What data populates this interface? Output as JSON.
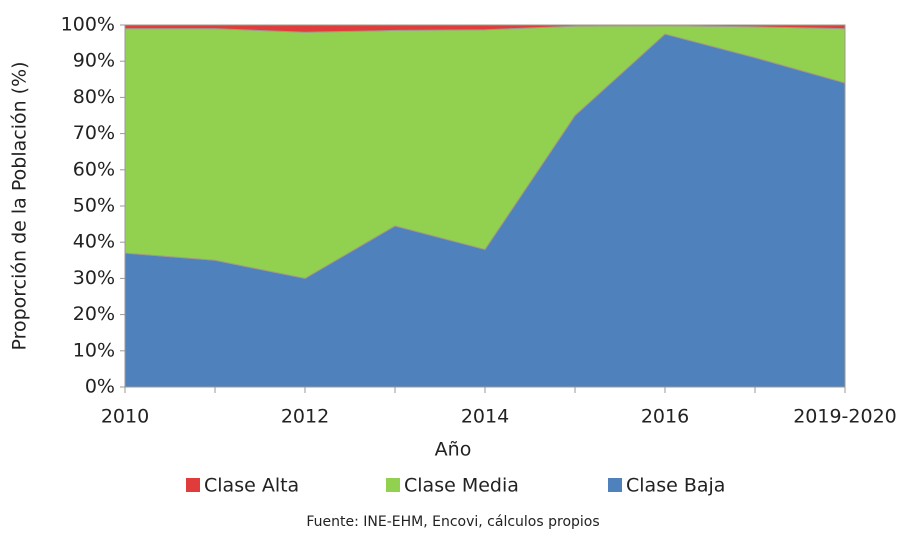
{
  "chart_data": {
    "type": "stacked_area",
    "categories": [
      "2010",
      null,
      "2012",
      null,
      "2014",
      null,
      "2016",
      null,
      "2019-2020"
    ],
    "series": [
      {
        "name": "Clase Alta",
        "color": "#e03c3c",
        "values": [
          1,
          1,
          2,
          1.5,
          1.3,
          0.3,
          0.2,
          0.5,
          1
        ]
      },
      {
        "name": "Clase Media",
        "color": "#92d050",
        "values": [
          62,
          64,
          68,
          54,
          60.7,
          24.7,
          2.3,
          8.5,
          15
        ]
      },
      {
        "name": "Clase Baja",
        "color": "#4f81bd",
        "values": [
          37,
          35,
          30,
          44.5,
          38,
          75,
          97.5,
          91,
          84
        ]
      }
    ],
    "ylim": [
      0,
      100
    ],
    "yticks": [
      {
        "value": 0,
        "label": "0%"
      },
      {
        "value": 10,
        "label": "10%"
      },
      {
        "value": 20,
        "label": "20%"
      },
      {
        "value": 30,
        "label": "30%"
      },
      {
        "value": 40,
        "label": "40%"
      },
      {
        "value": 50,
        "label": "50%"
      },
      {
        "value": 60,
        "label": "60%"
      },
      {
        "value": 70,
        "label": "70%"
      },
      {
        "value": 80,
        "label": "80%"
      },
      {
        "value": 90,
        "label": "90%"
      },
      {
        "value": 100,
        "label": "100%"
      }
    ],
    "ylabel": "Proporción de la Población (%)",
    "xlabel": "Año",
    "legend": "bottom",
    "source": "Fuente: INE-EHM, Encovi, cálculos propios"
  }
}
